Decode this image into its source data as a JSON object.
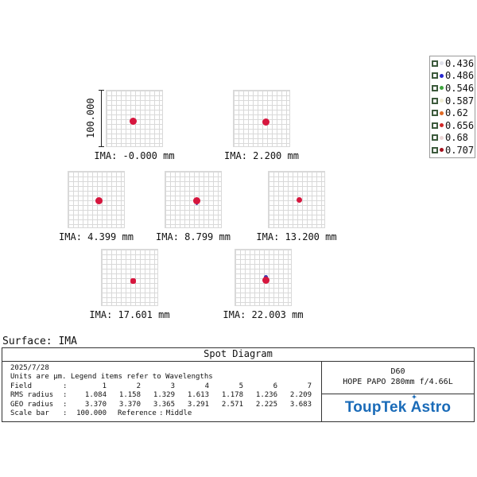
{
  "header": {
    "surface_label": "Surface: IMA",
    "title": "Spot Diagram"
  },
  "legend": {
    "items": [
      {
        "wavelength": "0.436",
        "color": "#dfe0ea"
      },
      {
        "wavelength": "0.486",
        "color": "#2727cf"
      },
      {
        "wavelength": "0.546",
        "color": "#3fa53f"
      },
      {
        "wavelength": "0.587",
        "color": "#efedd2"
      },
      {
        "wavelength": "0.62",
        "color": "#e06a25"
      },
      {
        "wavelength": "0.656",
        "color": "#d22727"
      },
      {
        "wavelength": "0.68",
        "color": "#ecd6d6"
      },
      {
        "wavelength": "0.707",
        "color": "#a5121f"
      }
    ]
  },
  "scale_axis": {
    "label": "100.000"
  },
  "panels": [
    {
      "label": "IMA: -0.000 mm"
    },
    {
      "label": "IMA: 2.200 mm"
    },
    {
      "label": "IMA: 4.399 mm"
    },
    {
      "label": "IMA: 8.799 mm"
    },
    {
      "label": "IMA: 13.200 mm"
    },
    {
      "label": "IMA: 17.601 mm"
    },
    {
      "label": "IMA: 22.003 mm"
    }
  ],
  "info_table": {
    "date": "2025/7/28",
    "units_note": "Units are µm. Legend items refer to Wavelengths",
    "colon": ":",
    "rows": [
      {
        "label": "Field",
        "values": [
          "1",
          "2",
          "3",
          "4",
          "5",
          "6",
          "7"
        ]
      },
      {
        "label": "RMS radius",
        "values": [
          "1.084",
          "1.158",
          "1.329",
          "1.613",
          "1.178",
          "1.236",
          "2.209"
        ]
      },
      {
        "label": "GEO radius",
        "values": [
          "3.370",
          "3.370",
          "3.365",
          "3.291",
          "2.571",
          "2.225",
          "3.683"
        ]
      }
    ],
    "scale_bar_label": "Scale bar",
    "scale_bar_value": "100.000",
    "reference_label": "Reference",
    "reference_value": "Middle"
  },
  "title_block": {
    "model": "D60",
    "description": "HOPE PAPO 280mm f/4.66L",
    "brand_word1": "ToupTek",
    "brand_word2": "Astro",
    "star_icon": "✦",
    "brand_color": "#1a6bb8"
  },
  "colors": {
    "spot_red": "#d6163e",
    "spot_blue": "#3b36b0",
    "grid_line": "#d9d9d9"
  },
  "chart_data": {
    "type": "scatter",
    "title": "Spot Diagram",
    "surface": "IMA",
    "date": "2025/7/28",
    "units": "µm",
    "grid": true,
    "legend_position": "top-right",
    "wavelengths_um": [
      0.436,
      0.486,
      0.546,
      0.587,
      0.62,
      0.656,
      0.68,
      0.707
    ],
    "fields": [
      1,
      2,
      3,
      4,
      5,
      6,
      7
    ],
    "field_image_heights_mm": [
      -0.0,
      2.2,
      4.399,
      8.799,
      13.2,
      17.601,
      22.003
    ],
    "rms_radius_um": [
      1.084,
      1.158,
      1.329,
      1.613,
      1.178,
      1.236,
      2.209
    ],
    "geo_radius_um": [
      3.37,
      3.37,
      3.365,
      3.291,
      2.571,
      2.225,
      3.683
    ],
    "scale_bar_um": 100.0,
    "reference": "Middle",
    "panels": [
      {
        "field": 1,
        "ima_mm": -0.0,
        "label": "IMA: -0.000 mm",
        "spot": "compact red blob near grid center"
      },
      {
        "field": 2,
        "ima_mm": 2.2,
        "label": "IMA: 2.200 mm",
        "spot": "compact red blob near grid center"
      },
      {
        "field": 3,
        "ima_mm": 4.399,
        "label": "IMA: 4.399 mm",
        "spot": "compact red blob near grid center"
      },
      {
        "field": 4,
        "ima_mm": 8.799,
        "label": "IMA: 8.799 mm",
        "spot": "red blob with slight blue fringe below"
      },
      {
        "field": 5,
        "ima_mm": 13.2,
        "label": "IMA: 13.200 mm",
        "spot": "small red blob near grid center"
      },
      {
        "field": 6,
        "ima_mm": 17.601,
        "label": "IMA: 17.601 mm",
        "spot": "small squarish red blob"
      },
      {
        "field": 7,
        "ima_mm": 22.003,
        "label": "IMA: 22.003 mm",
        "spot": "red blob with blue fringe on top"
      }
    ]
  }
}
